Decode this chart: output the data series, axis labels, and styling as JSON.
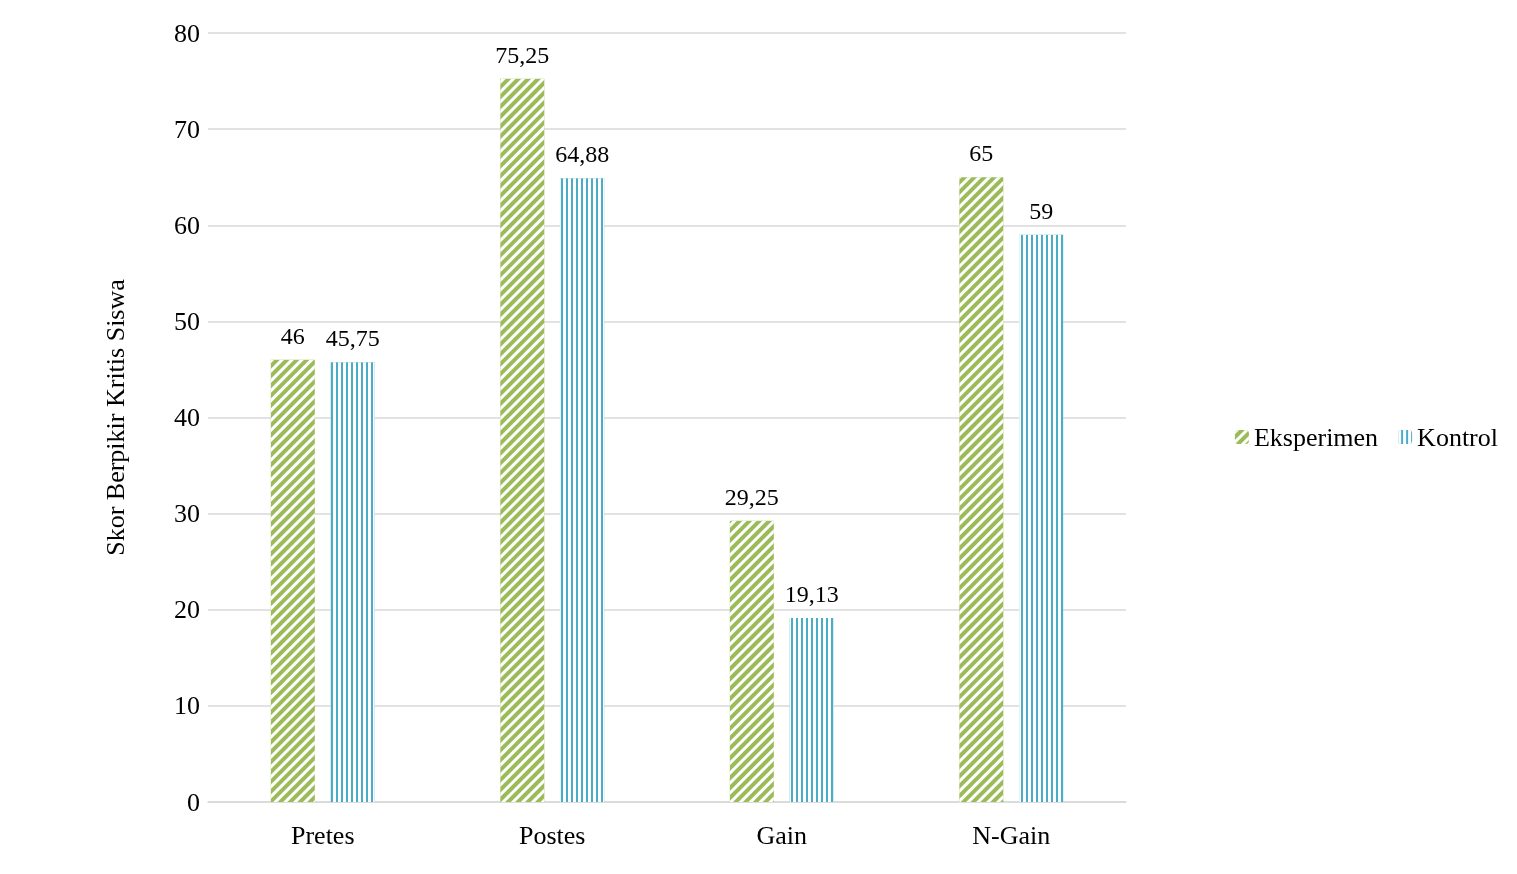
{
  "chart_data": {
    "type": "bar",
    "ylabel": "Skor Berpikir Kritis Siswa",
    "categories": [
      "Pretes",
      "Postes",
      "Gain",
      "N-Gain"
    ],
    "series": [
      {
        "name": "Eksperimen",
        "color": "#9bbb59",
        "values": [
          46,
          75.25,
          29.25,
          65
        ],
        "value_labels": [
          "46",
          "75,25",
          "29,25",
          "65"
        ]
      },
      {
        "name": "Kontrol",
        "color": "#4bacc6",
        "values": [
          45.75,
          64.88,
          19.13,
          59
        ],
        "value_labels": [
          "45,75",
          "64,88",
          "19,13",
          "59"
        ]
      }
    ],
    "ylim": [
      0,
      80
    ],
    "yticks": [
      0,
      10,
      20,
      30,
      40,
      50,
      60,
      70,
      80
    ],
    "grid": "y",
    "legend": "right"
  }
}
